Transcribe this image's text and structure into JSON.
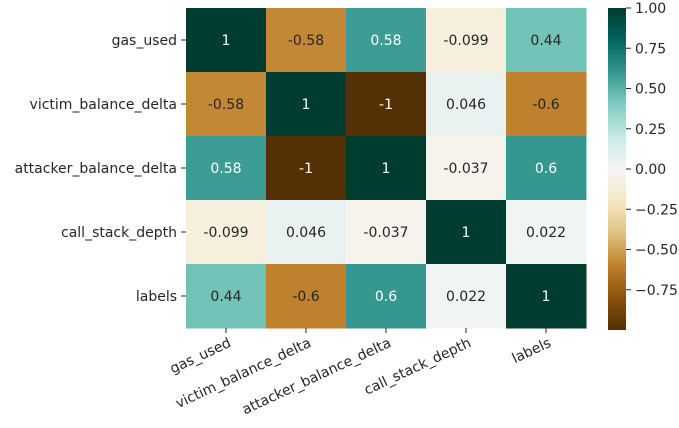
{
  "chart_data": {
    "type": "heatmap",
    "title": "",
    "xlabel": "",
    "ylabel": "",
    "rows": [
      "gas_used",
      "victim_balance_delta",
      "attacker_balance_delta",
      "call_stack_depth",
      "labels"
    ],
    "columns": [
      "gas_used",
      "victim_balance_delta",
      "attacker_balance_delta",
      "call_stack_depth",
      "labels"
    ],
    "values": [
      [
        1,
        -0.58,
        0.58,
        -0.099,
        0.44
      ],
      [
        -0.58,
        1,
        -1,
        0.046,
        -0.6
      ],
      [
        0.58,
        -1,
        1,
        -0.037,
        0.6
      ],
      [
        -0.099,
        0.046,
        -0.037,
        1,
        0.022
      ],
      [
        0.44,
        -0.6,
        0.6,
        0.022,
        1
      ]
    ],
    "cell_labels": [
      [
        "1",
        "-0.58",
        "0.58",
        "-0.099",
        "0.44"
      ],
      [
        "-0.58",
        "1",
        "-1",
        "0.046",
        "-0.6"
      ],
      [
        "0.58",
        "-1",
        "1",
        "-0.037",
        "0.6"
      ],
      [
        "-0.099",
        "0.046",
        "-0.037",
        "1",
        "0.022"
      ],
      [
        "0.44",
        "-0.6",
        "0.6",
        "0.022",
        "1"
      ]
    ],
    "colormap": "BrBG",
    "colorbar": {
      "range": [
        -1,
        1
      ],
      "ticks": [
        1.0,
        0.75,
        0.5,
        0.25,
        0.0,
        -0.25,
        -0.5,
        -0.75
      ],
      "tick_labels": [
        "1.00",
        "0.75",
        "0.50",
        "0.25",
        "0.00",
        "−0.25",
        "−0.50",
        "−0.75"
      ]
    }
  }
}
